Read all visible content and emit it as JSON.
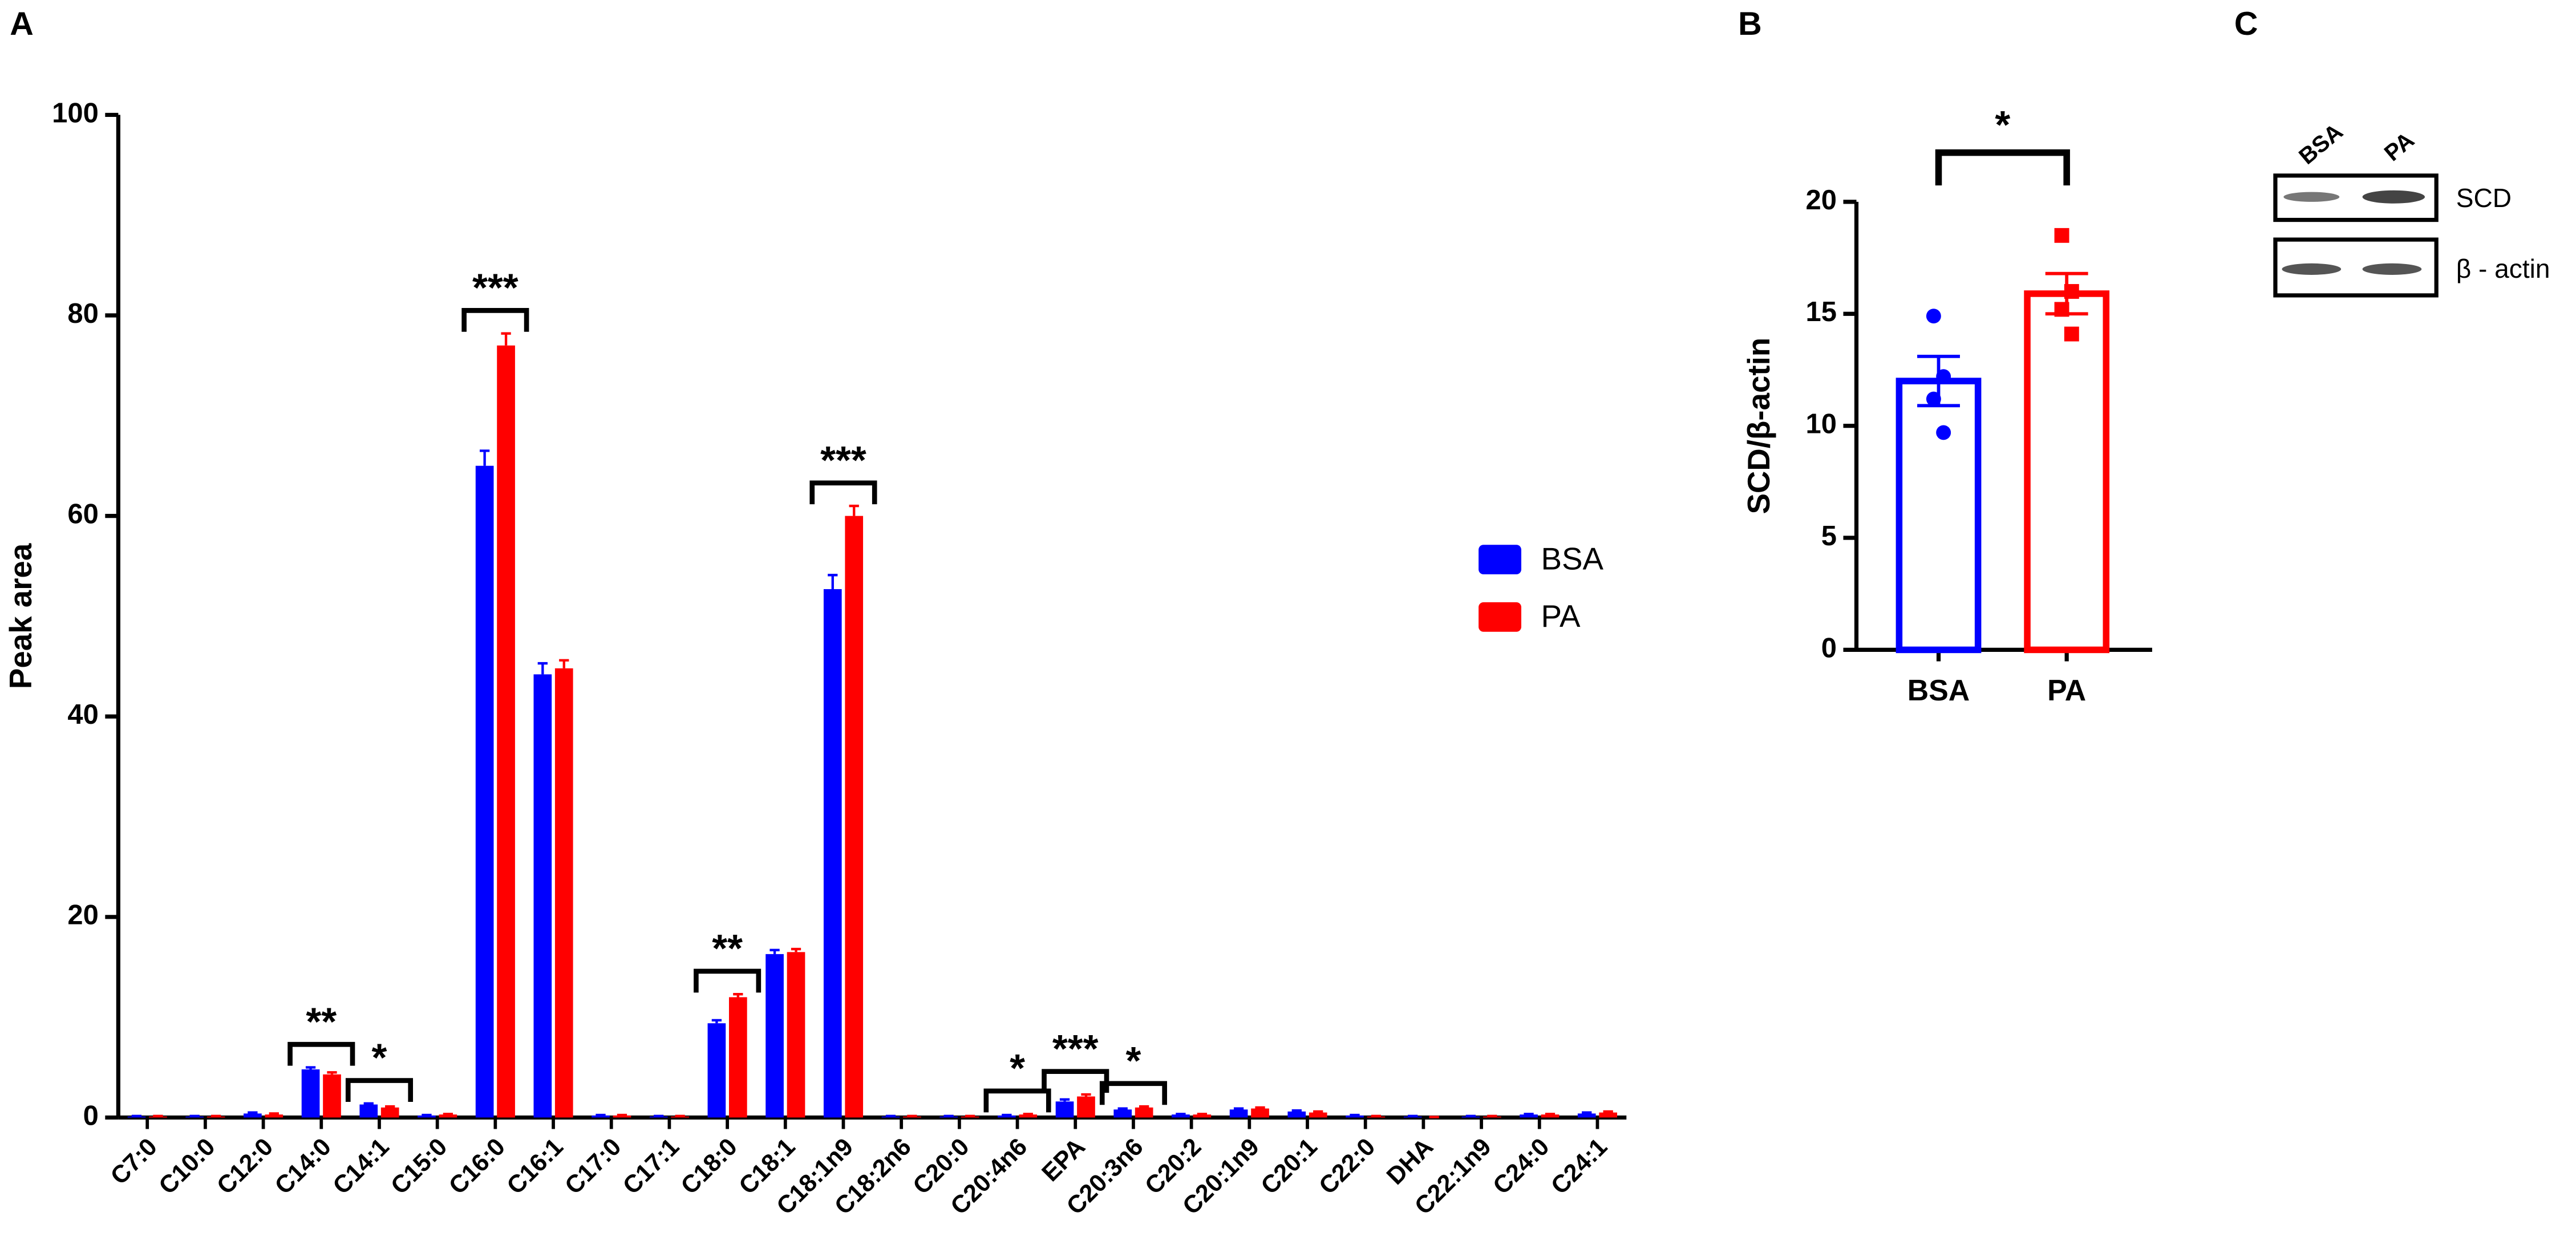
{
  "chart_data": [
    {
      "type": "grouped-bar",
      "panel": "A",
      "y_label": "Peak area",
      "categories": [
        "C7:0",
        "C10:0",
        "C12:0",
        "C14:0",
        "C14:1",
        "C15:0",
        "C16:0",
        "C16:1",
        "C17:0",
        "C17:1",
        "C18:0",
        "C18:1",
        "C18:1n9",
        "C18:2n6",
        "C20:0",
        "C20:4n6",
        "EPA",
        "C20:3n6",
        "C20:2",
        "C20:1n9",
        "C20:1",
        "C22:0",
        "DHA",
        "C22:1n9",
        "C24:0",
        "C24:1"
      ],
      "series": [
        {
          "name": "BSA",
          "color": "#0000ff",
          "values": [
            0.1,
            0.1,
            0.4,
            4.8,
            1.3,
            0.2,
            65,
            44.2,
            0.2,
            0.1,
            9.4,
            16.3,
            52.7,
            0.1,
            0.1,
            0.2,
            1.6,
            0.8,
            0.3,
            0.8,
            0.6,
            0.2,
            0.1,
            0.1,
            0.3,
            0.4
          ],
          "errors": [
            0.05,
            0.05,
            0.1,
            0.2,
            0.1,
            0.05,
            1.5,
            1.1,
            0.05,
            0.05,
            0.3,
            0.4,
            1.4,
            0.05,
            0.05,
            0.05,
            0.2,
            0.1,
            0.05,
            0.1,
            0.1,
            0.05,
            0.05,
            0.05,
            0.05,
            0.1
          ]
        },
        {
          "name": "PA",
          "color": "#ff0000",
          "values": [
            0.1,
            0.1,
            0.3,
            4.3,
            1.0,
            0.3,
            77,
            44.8,
            0.2,
            0.1,
            12.0,
            16.5,
            60,
            0.1,
            0.1,
            0.3,
            2.1,
            1.0,
            0.3,
            0.9,
            0.5,
            0.1,
            0.0,
            0.1,
            0.3,
            0.5
          ],
          "errors": [
            0.05,
            0.05,
            0.1,
            0.2,
            0.1,
            0.05,
            1.2,
            0.8,
            0.05,
            0.05,
            0.3,
            0.3,
            1.0,
            0.05,
            0.05,
            0.05,
            0.2,
            0.1,
            0.05,
            0.1,
            0.1,
            0.05,
            0.05,
            0.05,
            0.05,
            0.1
          ]
        }
      ],
      "ylim": [
        0,
        100
      ],
      "yticks": [
        0,
        20,
        40,
        60,
        80,
        100
      ],
      "legend": "right",
      "annotations": [
        {
          "category": "C14:0",
          "label": "**"
        },
        {
          "category": "C14:1",
          "label": "*"
        },
        {
          "category": "C16:0",
          "label": "***"
        },
        {
          "category": "C18:0",
          "label": "**"
        },
        {
          "category": "C18:1n9",
          "label": "***"
        },
        {
          "category": "C20:4n6",
          "label": "*"
        },
        {
          "category": "EPA",
          "label": "***"
        },
        {
          "category": "C20:3n6",
          "label": "*"
        }
      ]
    },
    {
      "type": "dot-bar",
      "panel": "B",
      "y_label": "SCD/β-actin",
      "categories": [
        "BSA",
        "PA"
      ],
      "colors": [
        "#0000ff",
        "#ff0000"
      ],
      "markers": [
        "circle",
        "square"
      ],
      "values": [
        12.0,
        15.9
      ],
      "errors": [
        1.1,
        0.9
      ],
      "points": [
        [
          14.9,
          12.2,
          11.2,
          9.7
        ],
        [
          18.5,
          16.0,
          15.2,
          14.1
        ]
      ],
      "ylim": [
        0,
        20
      ],
      "yticks": [
        0,
        5,
        10,
        15,
        20
      ],
      "annotations": [
        {
          "label": "*"
        }
      ]
    }
  ],
  "blot": {
    "panel": "C",
    "lanes": [
      "BSA",
      "PA"
    ],
    "bands": [
      "SCD",
      "β - actin"
    ]
  }
}
